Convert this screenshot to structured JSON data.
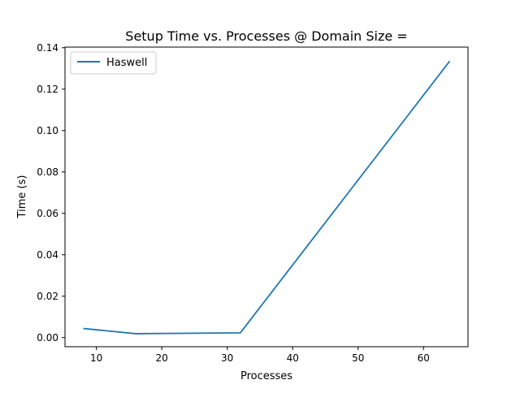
{
  "chart_data": {
    "type": "line",
    "title": "Setup Time vs. Processes @ Domain Size =",
    "xlabel": "Processes",
    "ylabel": "Time (s)",
    "xlim": [
      5.2,
      66.8
    ],
    "ylim": [
      -0.0044,
      0.1403
    ],
    "xticks": [
      10,
      20,
      30,
      40,
      50,
      60
    ],
    "yticks": [
      0.0,
      0.02,
      0.04,
      0.06,
      0.08,
      0.1,
      0.12,
      0.14
    ],
    "ytick_decimals": 2,
    "grid": false,
    "legend_position": "upper-left",
    "series": [
      {
        "name": "Haswell",
        "color": "#1f77b4",
        "x": [
          8,
          16,
          32,
          64
        ],
        "y": [
          0.0044,
          0.0019,
          0.0023,
          0.1335
        ]
      }
    ]
  }
}
